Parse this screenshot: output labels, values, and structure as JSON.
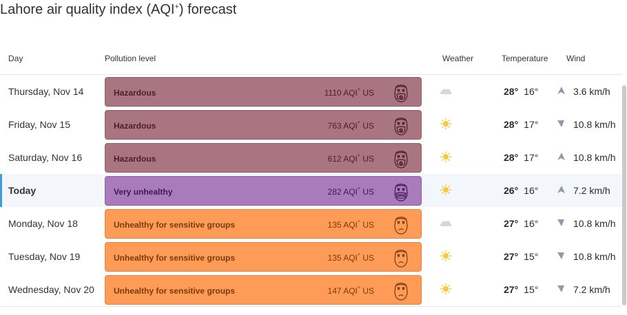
{
  "page": {
    "title": "Lahore air quality index (AQI",
    "title_sup": "+",
    "title_suffix": ") forecast"
  },
  "columns": {
    "day": "Day",
    "pollution": "Pollution level",
    "weather": "Weather",
    "temperature": "Temperature",
    "wind": "Wind"
  },
  "levels": {
    "hazardous": {
      "bg": "#a87580",
      "border": "#8e5e69",
      "text": "#4a1f2a"
    },
    "very-unhealthy": {
      "bg": "#a97abc",
      "border": "#8d5fa2",
      "text": "#3d1b4d"
    },
    "unhealthy-sensitive": {
      "bg": "#fe9b57",
      "border": "#e6823f",
      "text": "#7a3a0a"
    }
  },
  "aqi_unit": "AQI",
  "aqi_unit_sup": "+",
  "aqi_suffix": "US",
  "rows": [
    {
      "day": "Thursday, Nov 14",
      "level_key": "hazardous",
      "pollution": "Hazardous",
      "aqi": "1110",
      "face_icon": "gas-mask-face-icon",
      "weather_icon": "cloud-icon",
      "temp_high": "28°",
      "temp_low": "16°",
      "wind_dir": "up",
      "wind_speed": "3.6 km/h",
      "today": false
    },
    {
      "day": "Friday, Nov 15",
      "level_key": "hazardous",
      "pollution": "Hazardous",
      "aqi": "763",
      "face_icon": "gas-mask-face-icon",
      "weather_icon": "sun-icon",
      "temp_high": "28°",
      "temp_low": "17°",
      "wind_dir": "down",
      "wind_speed": "10.8 km/h",
      "today": false
    },
    {
      "day": "Saturday, Nov 16",
      "level_key": "hazardous",
      "pollution": "Hazardous",
      "aqi": "612",
      "face_icon": "gas-mask-face-icon",
      "weather_icon": "sun-icon",
      "temp_high": "28°",
      "temp_low": "17°",
      "wind_dir": "up",
      "wind_speed": "10.8 km/h",
      "today": false
    },
    {
      "day": "Today",
      "level_key": "very-unhealthy",
      "pollution": "Very unhealthy",
      "aqi": "282",
      "face_icon": "mask-face-icon",
      "weather_icon": "sun-icon",
      "temp_high": "26°",
      "temp_low": "16°",
      "wind_dir": "up",
      "wind_speed": "7.2 km/h",
      "today": true
    },
    {
      "day": "Monday, Nov 18",
      "level_key": "unhealthy-sensitive",
      "pollution": "Unhealthy for sensitive groups",
      "aqi": "135",
      "face_icon": "unhappy-face-icon",
      "weather_icon": "cloud-icon",
      "temp_high": "27°",
      "temp_low": "16°",
      "wind_dir": "down",
      "wind_speed": "10.8 km/h",
      "today": false
    },
    {
      "day": "Tuesday, Nov 19",
      "level_key": "unhealthy-sensitive",
      "pollution": "Unhealthy for sensitive groups",
      "aqi": "135",
      "face_icon": "unhappy-face-icon",
      "weather_icon": "sun-icon",
      "temp_high": "27°",
      "temp_low": "15°",
      "wind_dir": "down",
      "wind_speed": "10.8 km/h",
      "today": false
    },
    {
      "day": "Wednesday, Nov 20",
      "level_key": "unhealthy-sensitive",
      "pollution": "Unhealthy for sensitive groups",
      "aqi": "147",
      "face_icon": "unhappy-face-icon",
      "weather_icon": "sun-icon",
      "temp_high": "27°",
      "temp_low": "15°",
      "wind_dir": "down",
      "wind_speed": "7.2 km/h",
      "today": false
    }
  ],
  "colors": {
    "sun": "#f9c93b",
    "cloud": "#d3d8dd",
    "wind_arrow": "#8d9aab",
    "today_accent": "#3b9ddd"
  }
}
